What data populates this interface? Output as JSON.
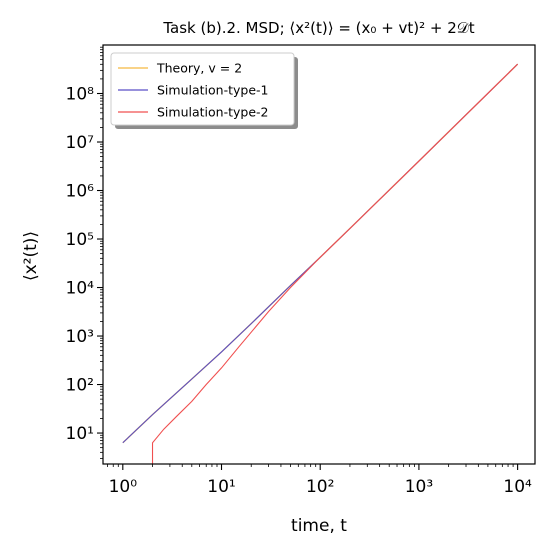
{
  "chart_data": {
    "type": "line",
    "title": "Task (b).2. MSD; ⟨x²(t)⟩ = (x₀ + vt)² + 2𝒟t",
    "xlabel": "time, t",
    "ylabel": "⟨x²(t)⟩",
    "xscale": "log",
    "yscale": "log",
    "xlim": [
      0.63,
      15000
    ],
    "ylim": [
      2.3,
      1000000000
    ],
    "x_ticks": [
      1,
      10,
      100,
      1000,
      10000
    ],
    "x_tick_labels": [
      "10⁰",
      "10¹",
      "10²",
      "10³",
      "10⁴"
    ],
    "y_ticks": [
      10,
      100,
      1000,
      10000,
      100000,
      1000000,
      10000000,
      100000000
    ],
    "y_tick_labels": [
      "10¹",
      "10²",
      "10³",
      "10⁴",
      "10⁵",
      "10⁶",
      "10⁷",
      "10⁸"
    ],
    "grid": false,
    "legend_position": "top-left",
    "series": [
      {
        "name": "Theory, v = 2",
        "color": "#f5b942",
        "x": [
          1,
          2,
          5,
          10,
          20,
          50,
          100,
          200,
          500,
          1000,
          2000,
          5000,
          10000
        ],
        "y": [
          6.3,
          24,
          130,
          470,
          1800,
          11000,
          42000,
          165000,
          1020000,
          4050000,
          16200000,
          101000000,
          403000000
        ]
      },
      {
        "name": "Simulation-type-1",
        "color": "#5a4fc8",
        "x": [
          1,
          2,
          5,
          10,
          20,
          50,
          100,
          200,
          500,
          1000,
          2000,
          5000,
          10000
        ],
        "y": [
          6.3,
          24,
          130,
          470,
          1800,
          11000,
          42000,
          165000,
          1020000,
          4050000,
          16200000,
          101000000,
          403000000
        ]
      },
      {
        "name": "Simulation-type-2",
        "color": "#f05050",
        "x": [
          2,
          2,
          2.6,
          3.5,
          5,
          7,
          10,
          15,
          20,
          30,
          50,
          100,
          200,
          500,
          1000,
          2000,
          5000,
          10000
        ],
        "y": [
          2.3,
          6.3,
          12,
          22,
          45,
          100,
          220,
          600,
          1200,
          3200,
          10000,
          42000,
          165000,
          1020000,
          4050000,
          16200000,
          101000000,
          403000000
        ]
      }
    ]
  }
}
